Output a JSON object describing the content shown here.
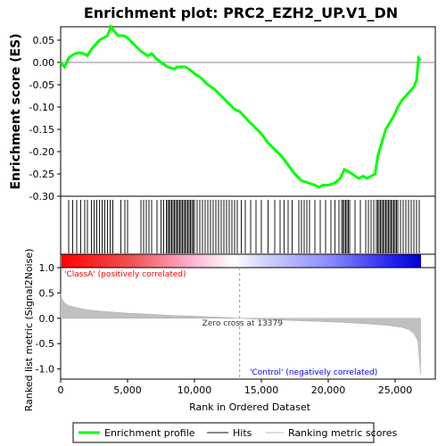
{
  "chart_data": {
    "type": "line",
    "title": "Enrichment plot: PRC2_EZH2_UP.V1_DN",
    "es_panel": {
      "ylabel": "Enrichment score (ES)",
      "ylim": [
        -0.3,
        0.08
      ],
      "yticks": [
        "0.05",
        "0.00",
        "-0.05",
        "-0.10",
        "-0.15",
        "-0.20",
        "-0.25",
        "-0.30"
      ],
      "ytick_values": [
        0.05,
        0.0,
        -0.05,
        -0.1,
        -0.15,
        -0.2,
        -0.25,
        -0.3
      ],
      "series": [
        {
          "name": "Enrichment profile",
          "color": "#00ff00",
          "x": [
            0,
            300,
            600,
            800,
            1100,
            1400,
            1700,
            2000,
            2300,
            2600,
            2900,
            3200,
            3500,
            3750,
            4000,
            4300,
            4700,
            5000,
            5500,
            6000,
            6500,
            6800,
            7100,
            7500,
            8000,
            8500,
            8700,
            9000,
            9300,
            9600,
            10000,
            10500,
            11000,
            11500,
            12000,
            12500,
            13000,
            13379,
            14000,
            14500,
            15000,
            15500,
            16000,
            16500,
            17000,
            17500,
            18000,
            18500,
            19000,
            19300,
            19600,
            20000,
            20500,
            20900,
            21200,
            21500,
            21800,
            22000,
            22300,
            22600,
            22900,
            23200,
            23500,
            23700,
            23900,
            24100,
            24300,
            24600,
            24900,
            25200,
            25500,
            25800,
            26100,
            26400,
            26600,
            26750,
            26900
          ],
          "values": [
            0.0,
            -0.01,
            0.01,
            0.015,
            0.02,
            0.022,
            0.02,
            0.015,
            0.03,
            0.04,
            0.05,
            0.055,
            0.06,
            0.08,
            0.07,
            0.06,
            0.06,
            0.055,
            0.04,
            0.025,
            0.015,
            0.02,
            0.01,
            0.0,
            -0.01,
            -0.015,
            -0.01,
            -0.01,
            -0.01,
            -0.015,
            -0.025,
            -0.035,
            -0.05,
            -0.06,
            -0.075,
            -0.09,
            -0.105,
            -0.11,
            -0.13,
            -0.145,
            -0.16,
            -0.18,
            -0.195,
            -0.21,
            -0.23,
            -0.25,
            -0.265,
            -0.27,
            -0.275,
            -0.28,
            -0.275,
            -0.275,
            -0.27,
            -0.26,
            -0.24,
            -0.245,
            -0.25,
            -0.255,
            -0.26,
            -0.255,
            -0.26,
            -0.255,
            -0.25,
            -0.21,
            -0.19,
            -0.17,
            -0.15,
            -0.135,
            -0.12,
            -0.1,
            -0.085,
            -0.075,
            -0.065,
            -0.055,
            -0.04,
            0.01,
            0.005
          ]
        }
      ]
    },
    "hits_panel": {
      "hit_positions": [
        600,
        900,
        1200,
        1500,
        1800,
        2000,
        2300,
        2500,
        2700,
        2900,
        3100,
        3300,
        3500,
        3700,
        3900,
        4500,
        4800,
        5000,
        6000,
        6200,
        6400,
        6600,
        6800,
        7200,
        7500,
        7700,
        7900,
        8000,
        8100,
        8200,
        8300,
        8400,
        8500,
        8600,
        8700,
        8800,
        8900,
        9000,
        9100,
        9200,
        9300,
        9400,
        9500,
        9600,
        9700,
        9800,
        9900,
        10000,
        10200,
        10400,
        10600,
        10800,
        11000,
        11200,
        11400,
        11600,
        11800,
        12000,
        12200,
        12400,
        12600,
        12800,
        13000,
        13200,
        13500,
        13800,
        14200,
        14600,
        15000,
        15500,
        16000,
        16400,
        16700,
        17000,
        17300,
        17800,
        18000,
        18200,
        18400,
        18600,
        19000,
        19400,
        19800,
        20200,
        20500,
        20800,
        21000,
        21100,
        21200,
        21300,
        21400,
        21500,
        21600,
        22000,
        22400,
        22800,
        23000,
        23200,
        23400,
        23600,
        23700,
        23800,
        23900,
        24000,
        24100,
        24200,
        24300,
        24400,
        24500,
        24600,
        24700,
        24800,
        24900,
        25000,
        25100,
        25200,
        25400,
        25600,
        25800,
        26000,
        26200,
        26400,
        26600,
        26800
      ]
    },
    "metric_panel": {
      "ylabel": "Ranked list metric (Signal2Noise)",
      "xlabel": "Rank in Ordered Dataset",
      "ylim": [
        -1.2,
        1.0
      ],
      "yticks": [
        "1.0",
        "0.5",
        "0.0",
        "-0.5",
        "-1.0"
      ],
      "ytick_values": [
        1.0,
        0.5,
        0.0,
        -0.5,
        -1.0
      ],
      "xlim": [
        0,
        28000
      ],
      "xticks": [
        "0",
        "5,000",
        "10,000",
        "15,000",
        "20,000",
        "25,000"
      ],
      "xtick_values": [
        0,
        5000,
        10000,
        15000,
        20000,
        25000
      ],
      "x": [
        0,
        100,
        300,
        600,
        1000,
        1500,
        2000,
        3000,
        4000,
        5000,
        6000,
        8000,
        10000,
        12000,
        13379,
        15000,
        17000,
        19000,
        21000,
        23000,
        24500,
        25500,
        26000,
        26400,
        26700,
        26900
      ],
      "values": [
        0.5,
        0.38,
        0.3,
        0.25,
        0.22,
        0.19,
        0.17,
        0.14,
        0.12,
        0.1,
        0.09,
        0.06,
        0.04,
        0.02,
        0.0,
        -0.02,
        -0.04,
        -0.06,
        -0.08,
        -0.11,
        -0.14,
        -0.18,
        -0.22,
        -0.3,
        -0.45,
        -1.1
      ],
      "zero_cross_label": "Zero cross at 13379",
      "zero_cross": 13379,
      "class_a_label": "'ClassA' (positively correlated)",
      "control_label": "'Control' (negatively correlated)"
    },
    "legend": {
      "placement": "bottom",
      "items": [
        "Enrichment profile",
        "Hits",
        "Ranking metric scores"
      ]
    },
    "colors": {
      "profile": "#00ff00",
      "hits": "#000000",
      "metric_fill": "#c0c0c0",
      "positive": "#ff0000",
      "negative": "#0000ff",
      "class_a_text": "#ff0000",
      "control_text": "#0000ff",
      "zero_cross_text": "#333333"
    }
  }
}
